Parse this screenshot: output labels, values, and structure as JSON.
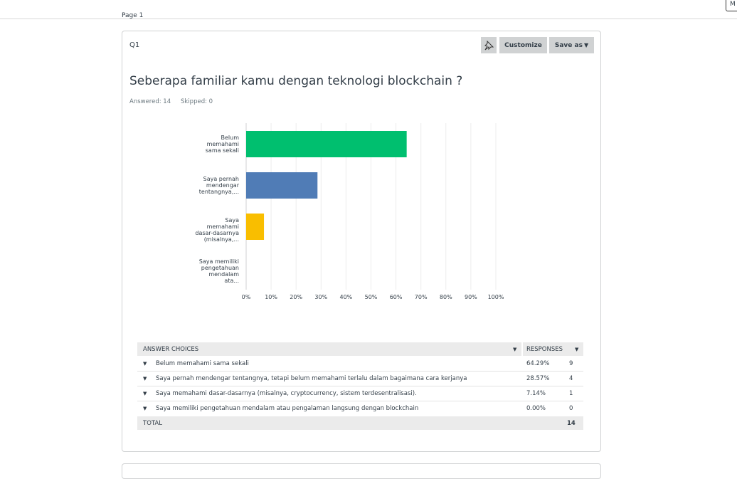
{
  "page_label": "Page 1",
  "corner_button": "M",
  "question": {
    "number": "Q1",
    "customize": "Customize",
    "save_as": "Save as",
    "title": "Seberapa familiar kamu dengan teknologi blockchain ?",
    "answered": "Answered: 14",
    "skipped": "Skipped: 0"
  },
  "chart_data": {
    "type": "bar",
    "orientation": "horizontal",
    "categories": [
      "Belum memahami sama sekali",
      "Saya pernah mendengar tentangnya,...",
      "Saya memahami dasar-dasarnya (misalnya,...",
      "Saya memiliki pengetahuan mendalam ata..."
    ],
    "values": [
      64.29,
      28.57,
      7.14,
      0
    ],
    "colors": [
      "#00bf6f",
      "#507cb6",
      "#f9be00",
      "#6bc8cd"
    ],
    "xlim": [
      0,
      100
    ],
    "xticks": [
      {
        "value": 0,
        "label": "0%"
      },
      {
        "value": 10,
        "label": "10%"
      },
      {
        "value": 20,
        "label": "20%"
      },
      {
        "value": 30,
        "label": "30%"
      },
      {
        "value": 40,
        "label": "40%"
      },
      {
        "value": 50,
        "label": "50%"
      },
      {
        "value": 60,
        "label": "60%"
      },
      {
        "value": 70,
        "label": "70%"
      },
      {
        "value": 80,
        "label": "80%"
      },
      {
        "value": 90,
        "label": "90%"
      },
      {
        "value": 100,
        "label": "100%"
      }
    ],
    "grid": true
  },
  "table": {
    "header": [
      "ANSWER CHOICES",
      "RESPONSES"
    ],
    "rows": [
      [
        "Belum memahami sama sekali",
        "64.29%",
        9
      ],
      [
        "Saya pernah mendengar tentangnya, tetapi belum memahami terlalu dalam bagaimana cara kerjanya",
        "28.57%",
        4
      ],
      [
        "Saya memahami dasar-dasarnya (misalnya, cryptocurrency, sistem terdesentralisasi).",
        "7.14%",
        1
      ],
      [
        "Saya memiliki pengetahuan mendalam atau pengalaman langsung dengan blockchain",
        "0.00%",
        0
      ]
    ],
    "total": [
      "TOTAL",
      14
    ]
  }
}
